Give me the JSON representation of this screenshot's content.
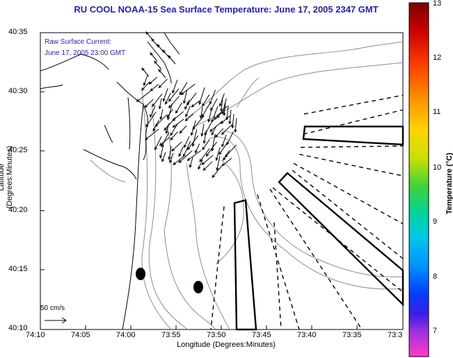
{
  "title": "RU COOL  NOAA-15  Sea Surface Temperature:  June 17, 2005 2347 GMT",
  "legend": {
    "line1": "Raw Surface Current:",
    "line2": "June 17, 2005 23:00 GMT",
    "scale_label": "50 cm/s"
  },
  "axes": {
    "xlabel": "Longitude (Degrees:Minutes)",
    "ylabel": "Latitude (Degrees:Minutes)",
    "xticks": [
      "74:10",
      "74:05",
      "74:00",
      "73:55",
      "73:50",
      "73:45",
      "73:40",
      "73:35",
      "73:3"
    ],
    "yticks": [
      "40:35",
      "40:30",
      "40:25",
      "40:20",
      "40:15",
      "40:10"
    ]
  },
  "colorbar": {
    "label": "Temperature (°C)",
    "ticks": [
      "13",
      "12",
      "11",
      "10",
      "9",
      "8",
      "7"
    ]
  },
  "colors": {
    "title": "#1f1fb8",
    "coast": "#000000",
    "contour": "#8c8c8c"
  }
}
